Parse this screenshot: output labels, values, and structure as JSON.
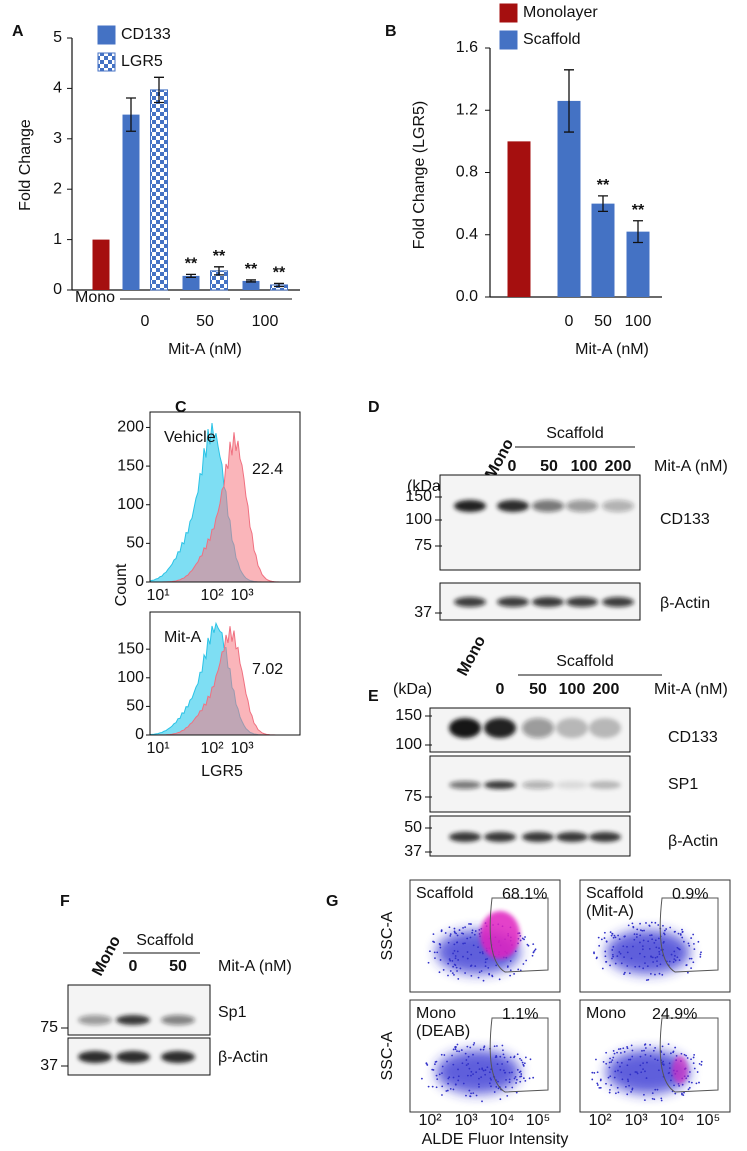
{
  "chart_data": [
    {
      "type": "bar",
      "panel": "A",
      "ylabel": "Fold Change",
      "xlabel": "Mit-A (nM)",
      "categories": [
        "Mono",
        "0",
        "50",
        "100"
      ],
      "series": [
        {
          "name": "CD133",
          "color": "#4472c4",
          "point_colors": [
            "#a50f0f",
            null,
            null,
            null
          ],
          "values": [
            1,
            3.48,
            0.28,
            0.18
          ],
          "errors": [
            null,
            0.33,
            0.03,
            0.02
          ],
          "annotations": [
            null,
            null,
            "**",
            "**"
          ]
        },
        {
          "name": "LGR5",
          "color": "#4472c4",
          "pattern": "checkerboard",
          "values": [
            null,
            3.97,
            0.38,
            0.1
          ],
          "errors": [
            null,
            0.25,
            0.08,
            0.03
          ],
          "annotations": [
            null,
            null,
            "**",
            "**"
          ]
        }
      ],
      "ylim": [
        0,
        5
      ],
      "yticks": [
        0,
        1,
        2,
        3,
        4,
        5
      ]
    },
    {
      "type": "bar",
      "panel": "B",
      "ylabel": "Fold Change (LGR5)",
      "xlabel": "Mit-A (nM)",
      "categories": [
        null,
        "0",
        "50",
        "100"
      ],
      "series": [
        {
          "name": "Monolayer",
          "color": "#a50f0f",
          "values": [
            1,
            null,
            null,
            null
          ]
        },
        {
          "name": "Scaffold",
          "color": "#4472c4",
          "values": [
            null,
            1.26,
            0.6,
            0.42
          ],
          "errors": [
            null,
            0.2,
            0.05,
            0.07
          ],
          "annotations": [
            null,
            null,
            "**",
            "**"
          ]
        }
      ],
      "ylim": [
        0,
        1.6
      ],
      "yticks": [
        {
          "value": 0,
          "label": "0.0"
        },
        {
          "value": 0.4,
          "label": "0.4"
        },
        {
          "value": 0.8,
          "label": "0.8"
        },
        {
          "value": 1.2,
          "label": "1.2"
        },
        {
          "value": 1.6,
          "label": "1.6"
        }
      ]
    }
  ],
  "panel_c": {
    "label": "C",
    "ylabel": "Count",
    "xlabel": "LGR5",
    "plots": [
      {
        "title": "Vehicle",
        "value": 22.4,
        "ylim": [
          0,
          220
        ],
        "yticks": [
          0,
          50,
          100,
          150,
          200
        ],
        "xticks": [
          "10¹",
          "10²",
          "10³"
        ]
      },
      {
        "title": "Mit-A",
        "value": 7.02,
        "ylim": [
          0,
          215
        ],
        "yticks": [
          0,
          50,
          100,
          150
        ],
        "xticks": [
          "10¹",
          "10²",
          "10³"
        ]
      }
    ]
  },
  "panel_d": {
    "label": "D",
    "group": "Scaffold",
    "lanes": [
      "Mono",
      "0",
      "50",
      "100",
      "200"
    ],
    "treatment": "Mit-A (nM)",
    "unit": "(kDa)",
    "markers": [
      150,
      100,
      75,
      37
    ],
    "proteins": [
      "CD133",
      "β-Actin"
    ]
  },
  "panel_e": {
    "label": "E",
    "group": "Scaffold",
    "lanes": [
      "Mono",
      "0",
      "50",
      "100",
      "200"
    ],
    "treatment": "Mit-A (nM)",
    "unit": "(kDa)",
    "markers": [
      150,
      100,
      75,
      50,
      37
    ],
    "proteins": [
      "CD133",
      "SP1",
      "β-Actin"
    ]
  },
  "panel_f": {
    "label": "F",
    "group": "Scaffold",
    "lanes": [
      "Mono",
      "0",
      "50"
    ],
    "treatment": "Mit-A (nM)",
    "markers": [
      75,
      37
    ],
    "proteins": [
      "Sp1",
      "β-Actin"
    ]
  },
  "panel_g": {
    "label": "G",
    "ylabel": "SSC-A",
    "xlabel": "ALDE Fluor Intensity",
    "xticks": [
      "10²",
      "10³",
      "10⁴",
      "10⁵"
    ],
    "plots": [
      {
        "lines": [
          "Scaffold"
        ],
        "percent": "68.1%"
      },
      {
        "lines": [
          "Scaffold",
          "(Mit-A)"
        ],
        "percent": "0.9%"
      },
      {
        "lines": [
          "Mono",
          "(DEAB)"
        ],
        "percent": "1.1%"
      },
      {
        "lines": [
          "Mono"
        ],
        "percent": "24.9%"
      }
    ]
  }
}
